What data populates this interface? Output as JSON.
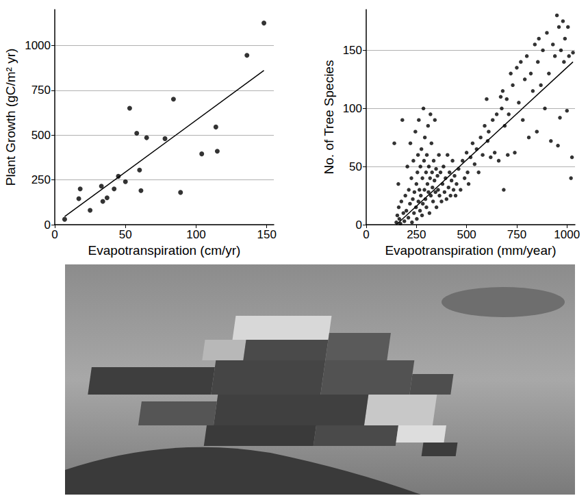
{
  "chart_data": [
    {
      "type": "scatter",
      "xlabel": "Evapotranspiration (cm/yr)",
      "ylabel": "Plant Growth (gC/m² yr)",
      "xlim": [
        0,
        155
      ],
      "xticks": [
        0,
        50,
        100,
        150
      ],
      "ylim": [
        0,
        1200
      ],
      "yticks": [
        0,
        250,
        500,
        750,
        1000
      ],
      "grid": true,
      "series": [
        {
          "type": "scatter",
          "marker": "circle",
          "color": "#000000",
          "x": [
            7,
            17,
            18,
            25,
            33,
            34,
            37,
            42,
            45,
            50,
            53,
            58,
            60,
            61,
            65,
            78,
            84,
            89,
            104,
            114,
            115,
            136,
            148
          ],
          "values": [
            30,
            145,
            200,
            80,
            215,
            130,
            150,
            200,
            270,
            240,
            650,
            510,
            305,
            190,
            485,
            480,
            700,
            180,
            395,
            545,
            410,
            945,
            1125
          ]
        },
        {
          "type": "line",
          "line_style": "solid",
          "color": "#000000",
          "x": [
            7,
            148
          ],
          "values": [
            45,
            860
          ]
        }
      ]
    },
    {
      "type": "scatter",
      "xlabel": "Evapotranspiration (mm/year)",
      "ylabel": "No. of Tree Species",
      "xlim": [
        0,
        1040
      ],
      "xticks": [
        0,
        250,
        500,
        750,
        1000
      ],
      "ylim": [
        0,
        185
      ],
      "yticks": [
        0,
        50,
        100,
        150
      ],
      "grid": true,
      "series": [
        {
          "type": "scatter",
          "marker": "circle",
          "color": "#000000",
          "x": [
            140,
            150,
            155,
            160,
            162,
            165,
            170,
            175,
            180,
            185,
            190,
            195,
            200,
            205,
            210,
            212,
            218,
            220,
            225,
            228,
            232,
            235,
            238,
            240,
            245,
            248,
            250,
            252,
            255,
            258,
            260,
            262,
            265,
            268,
            270,
            272,
            275,
            278,
            280,
            282,
            285,
            288,
            290,
            292,
            295,
            298,
            300,
            302,
            305,
            308,
            310,
            312,
            315,
            318,
            320,
            322,
            325,
            328,
            330,
            333,
            336,
            340,
            342,
            345,
            348,
            350,
            355,
            358,
            362,
            365,
            370,
            375,
            380,
            385,
            390,
            395,
            400,
            405,
            410,
            415,
            420,
            425,
            430,
            435,
            440,
            445,
            450,
            460,
            470,
            480,
            490,
            500,
            505,
            510,
            520,
            530,
            540,
            550,
            560,
            570,
            580,
            590,
            600,
            605,
            610,
            620,
            630,
            640,
            650,
            660,
            670,
            675,
            680,
            685,
            690,
            700,
            705,
            710,
            720,
            730,
            740,
            750,
            760,
            770,
            780,
            790,
            800,
            810,
            820,
            830,
            840,
            850,
            855,
            860,
            870,
            880,
            890,
            900,
            910,
            920,
            930,
            940,
            950,
            955,
            960,
            965,
            970,
            980,
            985,
            990,
            1000,
            1005,
            1010,
            1020,
            1025,
            1030
          ],
          "values": [
            70,
            2,
            8,
            35,
            15,
            5,
            1,
            20,
            90,
            10,
            3,
            25,
            12,
            50,
            6,
            30,
            18,
            70,
            40,
            2,
            22,
            55,
            10,
            28,
            80,
            15,
            35,
            5,
            45,
            60,
            20,
            90,
            30,
            12,
            50,
            25,
            65,
            8,
            40,
            18,
            100,
            55,
            30,
            75,
            22,
            45,
            15,
            60,
            35,
            85,
            28,
            50,
            10,
            40,
            95,
            25,
            70,
            45,
            32,
            20,
            55,
            38,
            90,
            28,
            48,
            15,
            42,
            30,
            60,
            25,
            45,
            20,
            35,
            50,
            28,
            40,
            22,
            60,
            32,
            45,
            25,
            38,
            55,
            30,
            42,
            25,
            35,
            48,
            30,
            55,
            40,
            62,
            45,
            35,
            58,
            70,
            52,
            65,
            45,
            75,
            60,
            85,
            108,
            72,
            80,
            58,
            90,
            62,
            95,
            55,
            110,
            100,
            115,
            30,
            85,
            108,
            60,
            95,
            130,
            120,
            62,
            135,
            105,
            140,
            90,
            125,
            145,
            75,
            130,
            115,
            155,
            80,
            140,
            160,
            120,
            150,
            100,
            165,
            130,
            72,
            155,
            145,
            180,
            68,
            170,
            92,
            150,
            175,
            140,
            160,
            98,
            170,
            145,
            40,
            58,
            148
          ]
        },
        {
          "type": "line",
          "line_style": "solid",
          "color": "#000000",
          "x": [
            150,
            1030
          ],
          "values": [
            0,
            140
          ]
        }
      ]
    }
  ]
}
